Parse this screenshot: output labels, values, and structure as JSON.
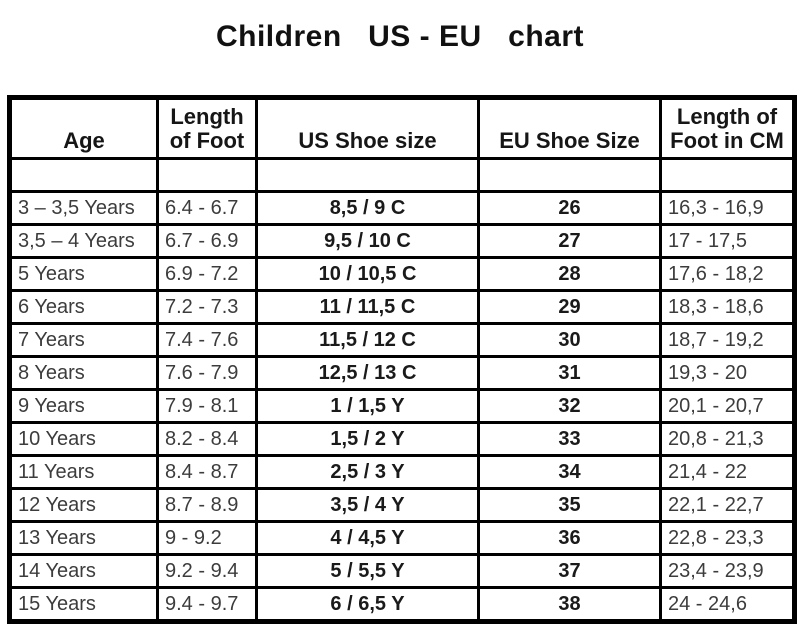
{
  "page": {
    "title": "Children   US - EU   chart"
  },
  "colors": {
    "background": "#ffffff",
    "border": "#000000",
    "title_text": "#111111",
    "regular_text": "#3c3c3c",
    "bold_text": "#1a1a1a"
  },
  "chart_data": {
    "type": "table",
    "title": "Children US - EU chart",
    "columns": [
      "Age",
      "Length\nof Foot",
      "US Shoe size",
      "EU Shoe Size",
      "Length of\nFoot in CM"
    ],
    "rows": [
      [
        "3 – 3,5 Years",
        "6.4 - 6.7",
        "8,5 / 9 C",
        "26",
        "16,3 - 16,9"
      ],
      [
        "3,5 – 4 Years",
        "6.7 - 6.9",
        "9,5 / 10 C",
        "27",
        "17 - 17,5"
      ],
      [
        "5 Years",
        "6.9 - 7.2",
        "10 / 10,5 C",
        "28",
        "17,6 - 18,2"
      ],
      [
        "6 Years",
        "7.2 - 7.3",
        "11 / 11,5 C",
        "29",
        "18,3 - 18,6"
      ],
      [
        "7 Years",
        "7.4 - 7.6",
        "11,5 / 12 C",
        "30",
        "18,7 - 19,2"
      ],
      [
        "8 Years",
        "7.6 - 7.9",
        "12,5 / 13 C",
        "31",
        "19,3 - 20"
      ],
      [
        "9 Years",
        "7.9 - 8.1",
        "1 / 1,5 Y",
        "32",
        "20,1 - 20,7"
      ],
      [
        "10 Years",
        "8.2 - 8.4",
        "1,5 / 2 Y",
        "33",
        "20,8 - 21,3"
      ],
      [
        "11 Years",
        "8.4 - 8.7",
        "2,5 / 3 Y",
        "34",
        "21,4 - 22"
      ],
      [
        "12 Years",
        "8.7 - 8.9",
        "3,5 / 4 Y",
        "35",
        "22,1 - 22,7"
      ],
      [
        "13 Years",
        "9 - 9.2",
        "4 / 4,5 Y",
        "36",
        "22,8 - 23,3"
      ],
      [
        "14 Years",
        "9.2 - 9.4",
        "5 / 5,5 Y",
        "37",
        "23,4 - 23,9"
      ],
      [
        "15 Years",
        "9.4 - 9.7",
        "6 / 6,5 Y",
        "38",
        "24 - 24,6"
      ]
    ]
  }
}
